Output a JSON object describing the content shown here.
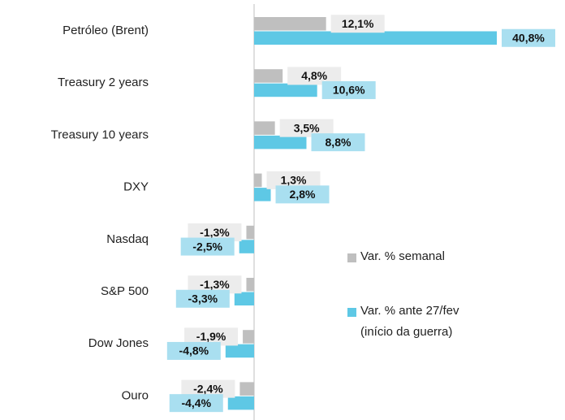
{
  "chart_data": {
    "type": "bar",
    "orientation": "horizontal",
    "categories": [
      "Petróleo (Brent)",
      "Treasury 2 years",
      "Treasury 10 years",
      "DXY",
      "Nasdaq",
      "S&P 500",
      "Dow Jones",
      "Ouro"
    ],
    "series": [
      {
        "name": "Var. % semanal",
        "color": "#bfbfbf",
        "values": [
          12.1,
          4.8,
          3.5,
          1.3,
          -1.3,
          -1.3,
          -1.9,
          -2.4
        ],
        "value_labels": [
          "12,1%",
          "4,8%",
          "3,5%",
          "1,3%",
          "-1,3%",
          "-1,3%",
          "-1,9%",
          "-2,4%"
        ]
      },
      {
        "name": "Var. % ante 27/fev (início da guerra)",
        "color": "#5ec8e5",
        "values": [
          40.8,
          10.6,
          8.8,
          2.8,
          -2.5,
          -3.3,
          -4.8,
          -4.4
        ],
        "value_labels": [
          "40,8%",
          "10,6%",
          "8,8%",
          "2,8%",
          "-2,5%",
          "-3,3%",
          "-4,8%",
          "-4,4%"
        ]
      }
    ],
    "legend": "right"
  }
}
